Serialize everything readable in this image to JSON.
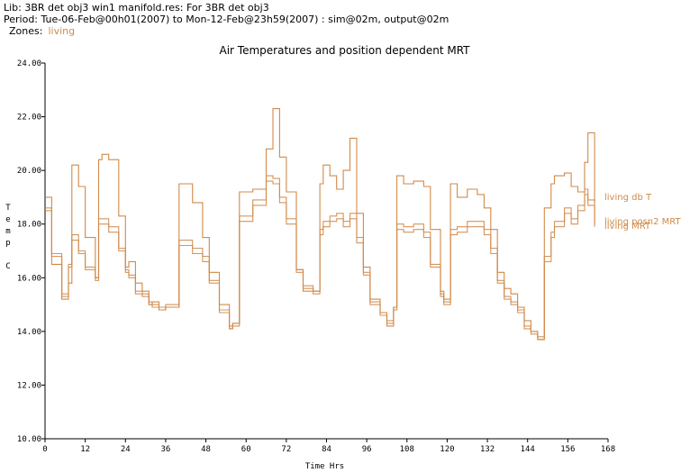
{
  "header": {
    "lib": "Lib: 3BR  det  obj3  win1  manifold.res: For 3BR  det  obj3",
    "period": "Period: Tue-06-Feb@00h01(2007) to Mon-12-Feb@23h59(2007) : sim@02m, output@02m",
    "zones_label": "Zones:",
    "zone": "living"
  },
  "chart_data": {
    "type": "line",
    "title": "Air Temperatures and position dependent MRT",
    "xlabel": "Time Hrs",
    "ylabel": "Temp C",
    "xlim": [
      0,
      168
    ],
    "ylim": [
      10,
      24
    ],
    "x_ticks": [
      0,
      12,
      24,
      36,
      48,
      60,
      72,
      84,
      96,
      108,
      120,
      132,
      144,
      156,
      168
    ],
    "y_ticks": [
      "10.00",
      "12.00",
      "14.00",
      "16.00",
      "18.00",
      "20.00",
      "22.00",
      "24.00"
    ],
    "line_color": "#d08a4a",
    "series": [
      {
        "name": "living db T",
        "x": [
          0,
          2,
          5,
          7,
          8,
          10,
          12,
          15,
          16,
          17,
          19,
          22,
          24,
          25,
          27,
          29,
          31,
          32,
          34,
          36,
          40,
          44,
          47,
          49,
          52,
          55,
          56,
          58,
          62,
          66,
          68,
          70,
          72,
          75,
          77,
          80,
          82,
          83,
          85,
          87,
          89,
          91,
          93,
          95,
          97,
          100,
          102,
          104,
          105,
          107,
          110,
          113,
          115,
          118,
          119,
          121,
          123,
          126,
          129,
          131,
          133,
          135,
          137,
          139,
          141,
          143,
          145,
          147,
          149,
          151,
          152,
          155,
          157,
          159,
          161,
          162,
          164
        ],
        "y": [
          19.0,
          16.5,
          15.2,
          15.8,
          20.2,
          19.4,
          17.5,
          16.0,
          20.4,
          20.6,
          20.4,
          18.3,
          16.4,
          16.6,
          15.8,
          15.5,
          15.0,
          15.1,
          14.8,
          14.9,
          19.5,
          18.8,
          17.5,
          16.2,
          15.0,
          14.1,
          14.3,
          19.2,
          19.3,
          20.8,
          22.3,
          20.5,
          19.2,
          16.3,
          15.5,
          15.5,
          19.5,
          20.2,
          19.8,
          19.3,
          20.0,
          21.2,
          18.4,
          16.4,
          15.2,
          14.7,
          14.2,
          14.9,
          19.8,
          19.5,
          19.6,
          19.4,
          17.8,
          15.5,
          15.2,
          19.5,
          19.0,
          19.3,
          19.1,
          18.6,
          17.8,
          16.2,
          15.6,
          15.4,
          14.9,
          14.4,
          14.0,
          13.7,
          18.6,
          19.5,
          19.8,
          19.9,
          19.4,
          19.2,
          20.3,
          21.4,
          18.8
        ]
      },
      {
        "name": "living MRT",
        "x": [
          0,
          2,
          5,
          7,
          8,
          10,
          12,
          15,
          16,
          17,
          19,
          22,
          24,
          25,
          27,
          29,
          31,
          32,
          34,
          36,
          40,
          44,
          47,
          49,
          52,
          55,
          56,
          58,
          62,
          66,
          68,
          70,
          72,
          75,
          77,
          80,
          82,
          83,
          85,
          87,
          89,
          91,
          93,
          95,
          97,
          100,
          102,
          104,
          105,
          107,
          110,
          113,
          115,
          118,
          119,
          121,
          123,
          126,
          129,
          131,
          133,
          135,
          137,
          139,
          141,
          143,
          145,
          147,
          149,
          151,
          152,
          155,
          157,
          159,
          161,
          162,
          164
        ],
        "y": [
          18.6,
          16.8,
          15.3,
          16.4,
          17.4,
          16.9,
          16.3,
          15.9,
          18.0,
          18.0,
          17.7,
          17.0,
          16.2,
          16.0,
          15.4,
          15.3,
          15.0,
          14.9,
          14.8,
          14.9,
          17.2,
          16.9,
          16.6,
          15.8,
          14.7,
          14.1,
          14.2,
          18.1,
          18.7,
          19.6,
          19.5,
          18.8,
          18.0,
          16.2,
          15.6,
          15.4,
          17.6,
          17.9,
          18.1,
          18.2,
          17.9,
          18.2,
          17.3,
          16.1,
          15.0,
          14.6,
          14.3,
          14.8,
          17.8,
          17.7,
          17.8,
          17.5,
          16.4,
          15.3,
          15.0,
          17.6,
          17.7,
          17.9,
          17.9,
          17.6,
          16.9,
          15.8,
          15.2,
          15.0,
          14.7,
          14.1,
          13.9,
          13.7,
          16.6,
          17.5,
          17.9,
          18.4,
          18.0,
          18.5,
          19.1,
          18.7,
          17.9
        ]
      },
      {
        "name": "living posn2 MRT",
        "x": [
          0,
          2,
          5,
          7,
          8,
          10,
          12,
          15,
          16,
          17,
          19,
          22,
          24,
          25,
          27,
          29,
          31,
          32,
          34,
          36,
          40,
          44,
          47,
          49,
          52,
          55,
          56,
          58,
          62,
          66,
          68,
          70,
          72,
          75,
          77,
          80,
          82,
          83,
          85,
          87,
          89,
          91,
          93,
          95,
          97,
          100,
          102,
          104,
          105,
          107,
          110,
          113,
          115,
          118,
          119,
          121,
          123,
          126,
          129,
          131,
          133,
          135,
          137,
          139,
          141,
          143,
          145,
          147,
          149,
          151,
          152,
          155,
          157,
          159,
          161,
          162,
          164
        ],
        "y": [
          18.5,
          16.9,
          15.4,
          16.5,
          17.6,
          17.0,
          16.4,
          16.0,
          18.2,
          18.2,
          17.9,
          17.1,
          16.3,
          16.1,
          15.5,
          15.4,
          15.1,
          15.0,
          14.9,
          15.0,
          17.4,
          17.1,
          16.8,
          15.9,
          14.8,
          14.2,
          14.3,
          18.3,
          18.9,
          19.8,
          19.7,
          19.0,
          18.2,
          16.3,
          15.7,
          15.5,
          17.8,
          18.1,
          18.3,
          18.4,
          18.1,
          18.4,
          17.5,
          16.2,
          15.1,
          14.7,
          14.4,
          14.9,
          18.0,
          17.9,
          18.0,
          17.7,
          16.5,
          15.4,
          15.1,
          17.8,
          17.9,
          18.1,
          18.1,
          17.8,
          17.1,
          15.9,
          15.3,
          15.1,
          14.8,
          14.2,
          14.0,
          13.8,
          16.8,
          17.7,
          18.1,
          18.6,
          18.2,
          18.7,
          19.3,
          18.9,
          18.0
        ]
      }
    ],
    "legend": [
      "living db T",
      "living posn2 MRT",
      "living MRT"
    ]
  }
}
